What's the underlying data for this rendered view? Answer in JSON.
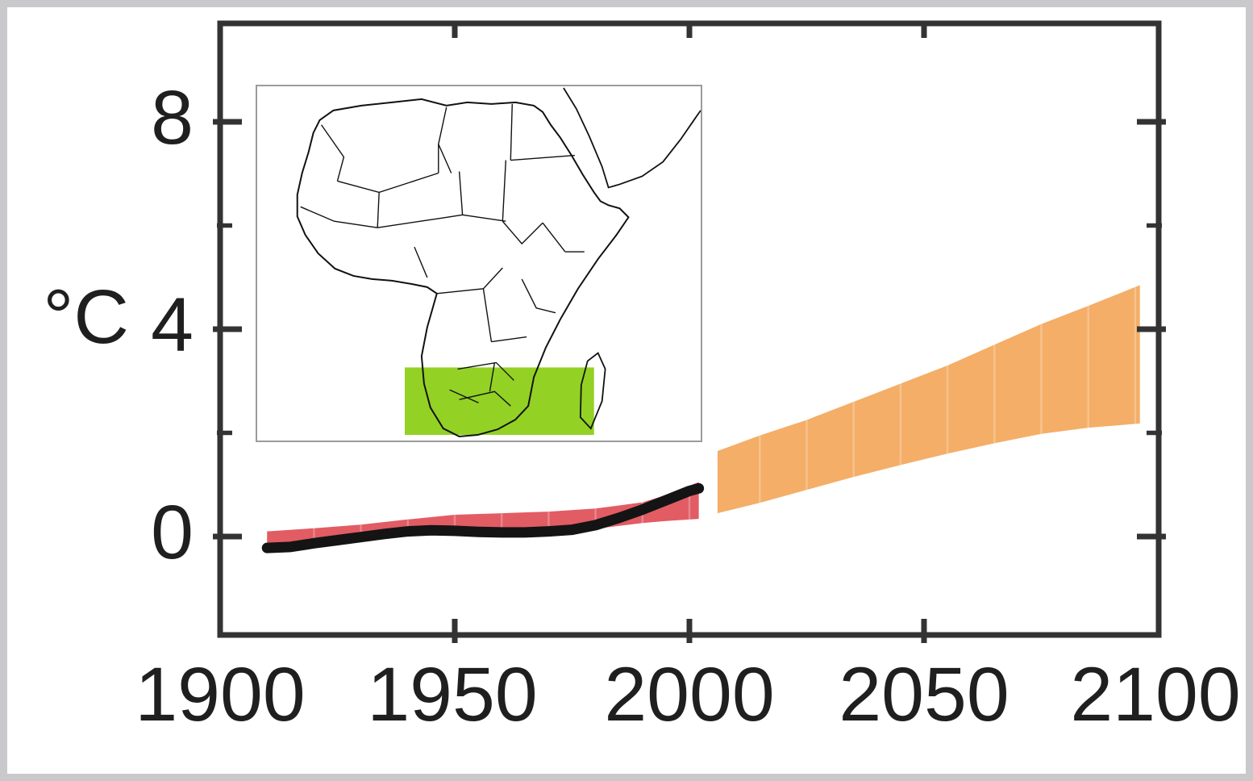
{
  "figure": {
    "kind": "regional climate temperature-anomaly figure",
    "unit_label": "°C",
    "colors": {
      "observed_line": "#141414",
      "hindcast_band": "#e25c64",
      "projection_band": "#f4ae67",
      "region_highlight": "#93d125",
      "axis": "#333333",
      "frame": "#c9c9cb",
      "map_border": "#9b9b9b",
      "label_text": "#1f1f1f"
    },
    "inset_map": {
      "content": "Africa outline map with country borders",
      "highlight": "southern-africa-region-box"
    }
  },
  "chart_data": {
    "type": "area",
    "title": "",
    "xlabel": "",
    "ylabel": "°C",
    "xlim": [
      1900,
      2100
    ],
    "ylim": [
      -1.9,
      9.9
    ],
    "grid": false,
    "legend": "none",
    "x_ticks": [
      1900,
      1950,
      2000,
      2050,
      2100
    ],
    "x_tick_labels": [
      "1900",
      "1950",
      "2000",
      "2050",
      "2100"
    ],
    "y_ticks_labeled": [
      8,
      4,
      0
    ],
    "y_tick_labels": [
      "8",
      "4",
      "0"
    ],
    "y_ticks_minor": [
      6,
      2
    ],
    "series": [
      {
        "key": "observed",
        "name": "Observed temperature anomaly (black line)",
        "type": "line",
        "x": [
          1910,
          1915,
          1920,
          1925,
          1930,
          1935,
          1940,
          1945,
          1950,
          1955,
          1960,
          1965,
          1970,
          1975,
          1980,
          1985,
          1990,
          1995,
          2000,
          2002
        ],
        "y": [
          -0.22,
          -0.2,
          -0.13,
          -0.07,
          -0.01,
          0.05,
          0.1,
          0.12,
          0.11,
          0.09,
          0.08,
          0.08,
          0.1,
          0.13,
          0.22,
          0.36,
          0.52,
          0.7,
          0.88,
          0.93
        ]
      },
      {
        "key": "hindcast",
        "name": "Simulated 20th-century range (red band)",
        "type": "band",
        "x": [
          1910,
          1920,
          1930,
          1940,
          1950,
          1960,
          1970,
          1980,
          1990,
          1995,
          2002
        ],
        "low": [
          -0.18,
          -0.12,
          -0.06,
          0.0,
          0.05,
          0.08,
          0.1,
          0.15,
          0.26,
          0.3,
          0.34
        ],
        "high": [
          0.1,
          0.16,
          0.23,
          0.33,
          0.42,
          0.45,
          0.48,
          0.54,
          0.66,
          0.8,
          1.05
        ]
      },
      {
        "key": "projection",
        "name": "Projected 21st-century range (orange band)",
        "type": "band",
        "x": [
          2006,
          2015,
          2025,
          2035,
          2045,
          2055,
          2065,
          2075,
          2085,
          2096
        ],
        "low": [
          0.45,
          0.65,
          0.9,
          1.15,
          1.38,
          1.6,
          1.8,
          1.98,
          2.1,
          2.18
        ],
        "high": [
          1.65,
          1.95,
          2.25,
          2.6,
          2.95,
          3.3,
          3.7,
          4.1,
          4.45,
          4.85
        ]
      }
    ]
  }
}
